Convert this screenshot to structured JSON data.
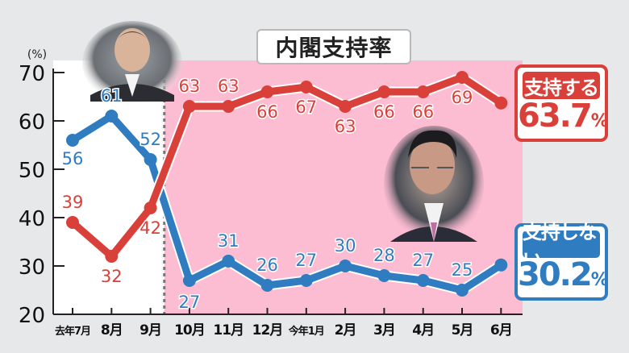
{
  "header": {
    "title": "内閣支持率"
  },
  "badges": {
    "support": {
      "label": "支持する",
      "value": "63.7",
      "unit": "%",
      "color": "#d9403a"
    },
    "no_support": {
      "label": "支持しない",
      "value": "30.2",
      "unit": "%",
      "color": "#2f7cc0"
    }
  },
  "colors": {
    "support": "#d9403a",
    "no_support": "#2f7cc0",
    "highlight_bg": "#fcbcd2",
    "plot_bg": "#ffffff",
    "page_bg": "#e6e8ea"
  },
  "photos": [
    {
      "name": "former-prime-minister-photo",
      "period": "去年7月–9月"
    },
    {
      "name": "current-prime-minister-photo",
      "period": "10月–6月"
    }
  ],
  "chart_data": {
    "type": "line",
    "title": "内閣支持率",
    "ylabel": "(%)",
    "xlabel": "",
    "ylim": [
      20,
      70
    ],
    "yticks": [
      20,
      30,
      40,
      50,
      60,
      70
    ],
    "categories": [
      "去年7月",
      "8月",
      "9月",
      "10月",
      "11月",
      "12月",
      "今年1月",
      "2月",
      "3月",
      "4月",
      "5月",
      "6月"
    ],
    "series": [
      {
        "name": "支持する",
        "color": "#d9403a",
        "values": [
          39,
          32,
          42,
          63,
          63,
          66,
          67,
          63,
          66,
          66,
          69,
          63.7
        ],
        "labels": [
          "39",
          "32",
          "42",
          "63",
          "63",
          "66",
          "67",
          "63",
          "66",
          "66",
          "69",
          ""
        ]
      },
      {
        "name": "支持しない",
        "color": "#2f7cc0",
        "values": [
          56,
          61,
          52,
          27,
          31,
          26,
          27,
          30,
          28,
          27,
          25,
          30.2
        ],
        "labels": [
          "56",
          "61",
          "52",
          "27",
          "31",
          "26",
          "27",
          "30",
          "28",
          "27",
          "25",
          ""
        ]
      }
    ],
    "highlight_region": {
      "from": "10月",
      "to": "6月"
    },
    "grid": false,
    "legend": "right badges"
  }
}
